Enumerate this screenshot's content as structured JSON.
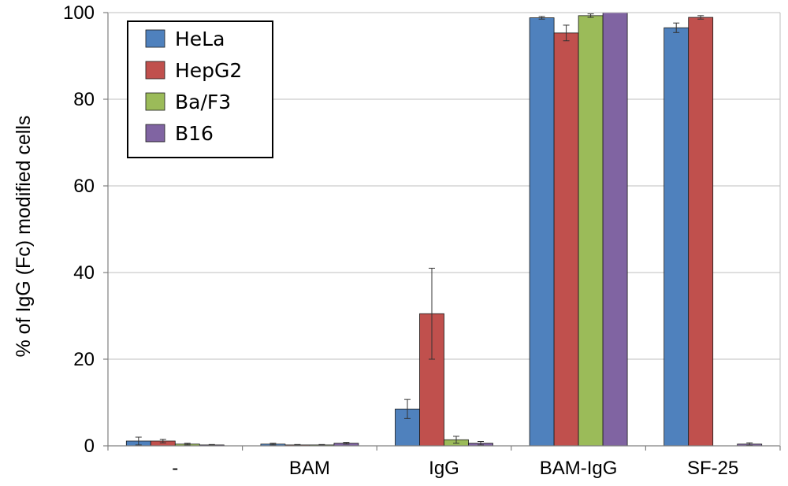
{
  "chart_data": {
    "type": "bar",
    "title": "",
    "xlabel": "",
    "ylabel": "% of IgG (Fc) modified cells",
    "ylim": [
      0,
      100
    ],
    "yticks": [
      0,
      20,
      40,
      60,
      80,
      100
    ],
    "grid": true,
    "legend_position": "top-left",
    "categories": [
      "-",
      "BAM",
      "IgG",
      "BAM-IgG",
      "SF-25"
    ],
    "series": [
      {
        "name": "HeLa",
        "color": "#4F81BD",
        "values": [
          1.1,
          0.4,
          8.5,
          98.8,
          96.5
        ],
        "errors": [
          0.9,
          0.2,
          2.2,
          0.3,
          1.1
        ]
      },
      {
        "name": "HepG2",
        "color": "#C0504D",
        "values": [
          1.1,
          0.2,
          30.5,
          95.3,
          98.9
        ],
        "errors": [
          0.4,
          0.1,
          10.5,
          1.8,
          0.4
        ]
      },
      {
        "name": "Ba/F3",
        "color": "#9BBB59",
        "values": [
          0.4,
          0.2,
          1.4,
          99.3,
          0.0
        ],
        "errors": [
          0.2,
          0.1,
          0.8,
          0.4,
          0.0
        ]
      },
      {
        "name": "B16",
        "color": "#8064A2",
        "values": [
          0.2,
          0.6,
          0.6,
          100.0,
          0.4
        ],
        "errors": [
          0.1,
          0.2,
          0.4,
          0.0,
          0.3
        ]
      }
    ]
  }
}
